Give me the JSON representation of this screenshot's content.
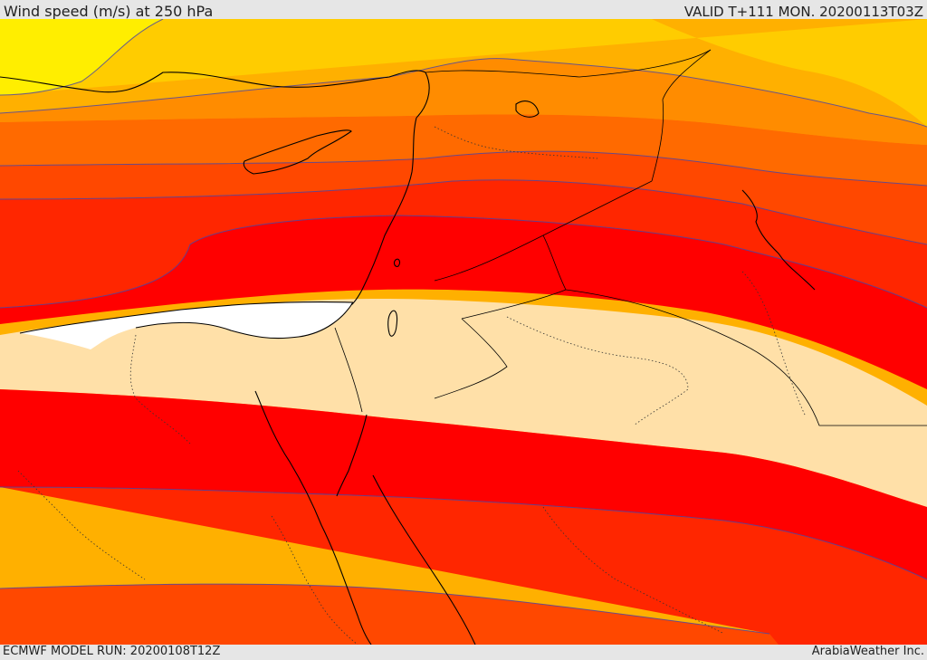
{
  "header": {
    "title": "Wind speed (m/s) at 250 hPa",
    "valid": "VALID T+111 MON. 20200113T03Z"
  },
  "footer": {
    "model_run": "ECMWF MODEL RUN: 20200108T12Z",
    "credit": "ArabiaWeather Inc."
  },
  "map": {
    "field": "wind speed",
    "level": "250 hPa",
    "colors": {
      "light_yellow": "#ffee00",
      "yellow": "#ffcc00",
      "amber": "#ffb000",
      "orange": "#ff8c00",
      "dark_orange": "#ff6a00",
      "orange_red": "#ff4800",
      "red_orange": "#ff2600",
      "red": "#ff0000",
      "jet_core": "#ffe0a8",
      "contour_line": "#4444aa",
      "coastline": "#000000",
      "land_interior": "#ffffff"
    }
  }
}
